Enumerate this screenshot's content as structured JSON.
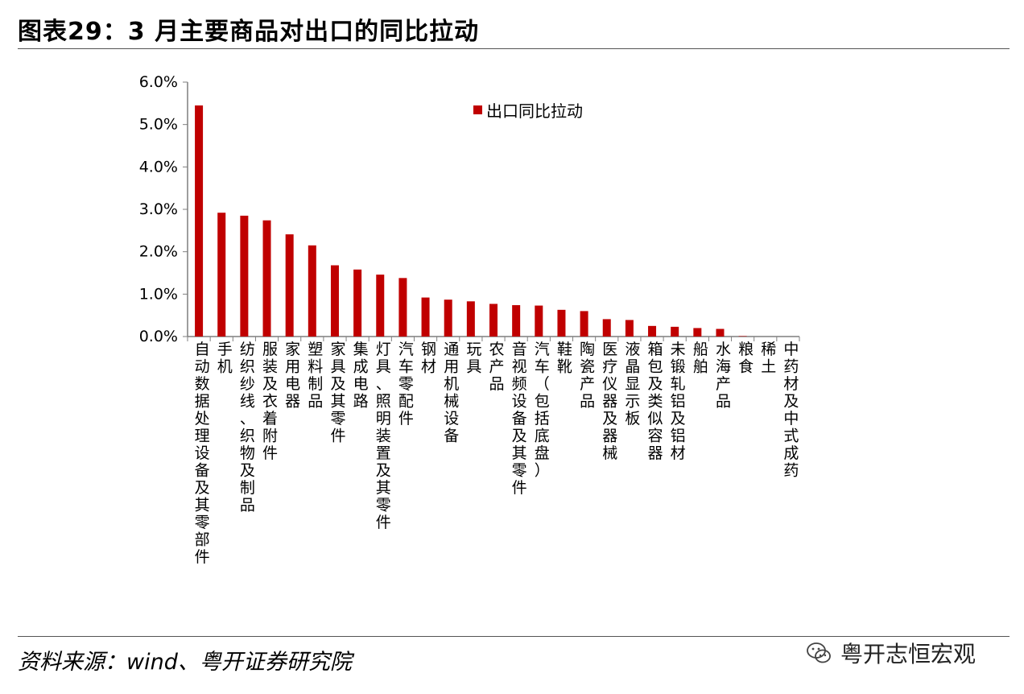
{
  "header": {
    "title": "图表29：3 月主要商品对出口的同比拉动"
  },
  "footer": {
    "source": "资料来源：wind、粤开证券研究院"
  },
  "watermark": {
    "text": "粤开志恒宏观",
    "icon": "wechat-icon"
  },
  "colors": {
    "bar": "#c00000",
    "axis": "#7f7f7f"
  },
  "chart_data": {
    "type": "bar",
    "title": "",
    "xlabel": "",
    "ylabel": "",
    "ylim": [
      0,
      6.0
    ],
    "yticks": [
      "6.0%",
      "5.0%",
      "4.0%",
      "3.0%",
      "2.0%",
      "1.0%",
      "0.0%"
    ],
    "grid": false,
    "legend": {
      "position": "top-right",
      "entries": [
        "出口同比拉动"
      ]
    },
    "series": [
      {
        "name": "出口同比拉动",
        "unit": "%",
        "values": [
          5.45,
          2.92,
          2.85,
          2.74,
          2.41,
          2.15,
          1.68,
          1.58,
          1.46,
          1.38,
          0.92,
          0.87,
          0.83,
          0.77,
          0.74,
          0.73,
          0.63,
          0.6,
          0.41,
          0.39,
          0.25,
          0.23,
          0.2,
          0.18,
          0.01,
          0.0,
          0.0
        ]
      }
    ],
    "categories": [
      "自动数据处理设备及其零部件",
      "手机",
      "纺织纱线、织物及制品",
      "服装及衣着附件",
      "家用电器",
      "塑料制品",
      "家具及其零件",
      "集成电路",
      "灯具、照明装置及其零件",
      "汽车零配件",
      "钢材",
      "通用机械设备",
      "玩具",
      "农产品",
      "音视频设备及其零件",
      "汽车（包括底盘）",
      "鞋靴",
      "陶瓷产品",
      "医疗仪器及器械",
      "液晶显示板",
      "箱包及类似容器",
      "未锻轧铝及铝材",
      "船舶",
      "水海产品",
      "粮食",
      "稀土",
      "中药材及中式成药"
    ]
  }
}
